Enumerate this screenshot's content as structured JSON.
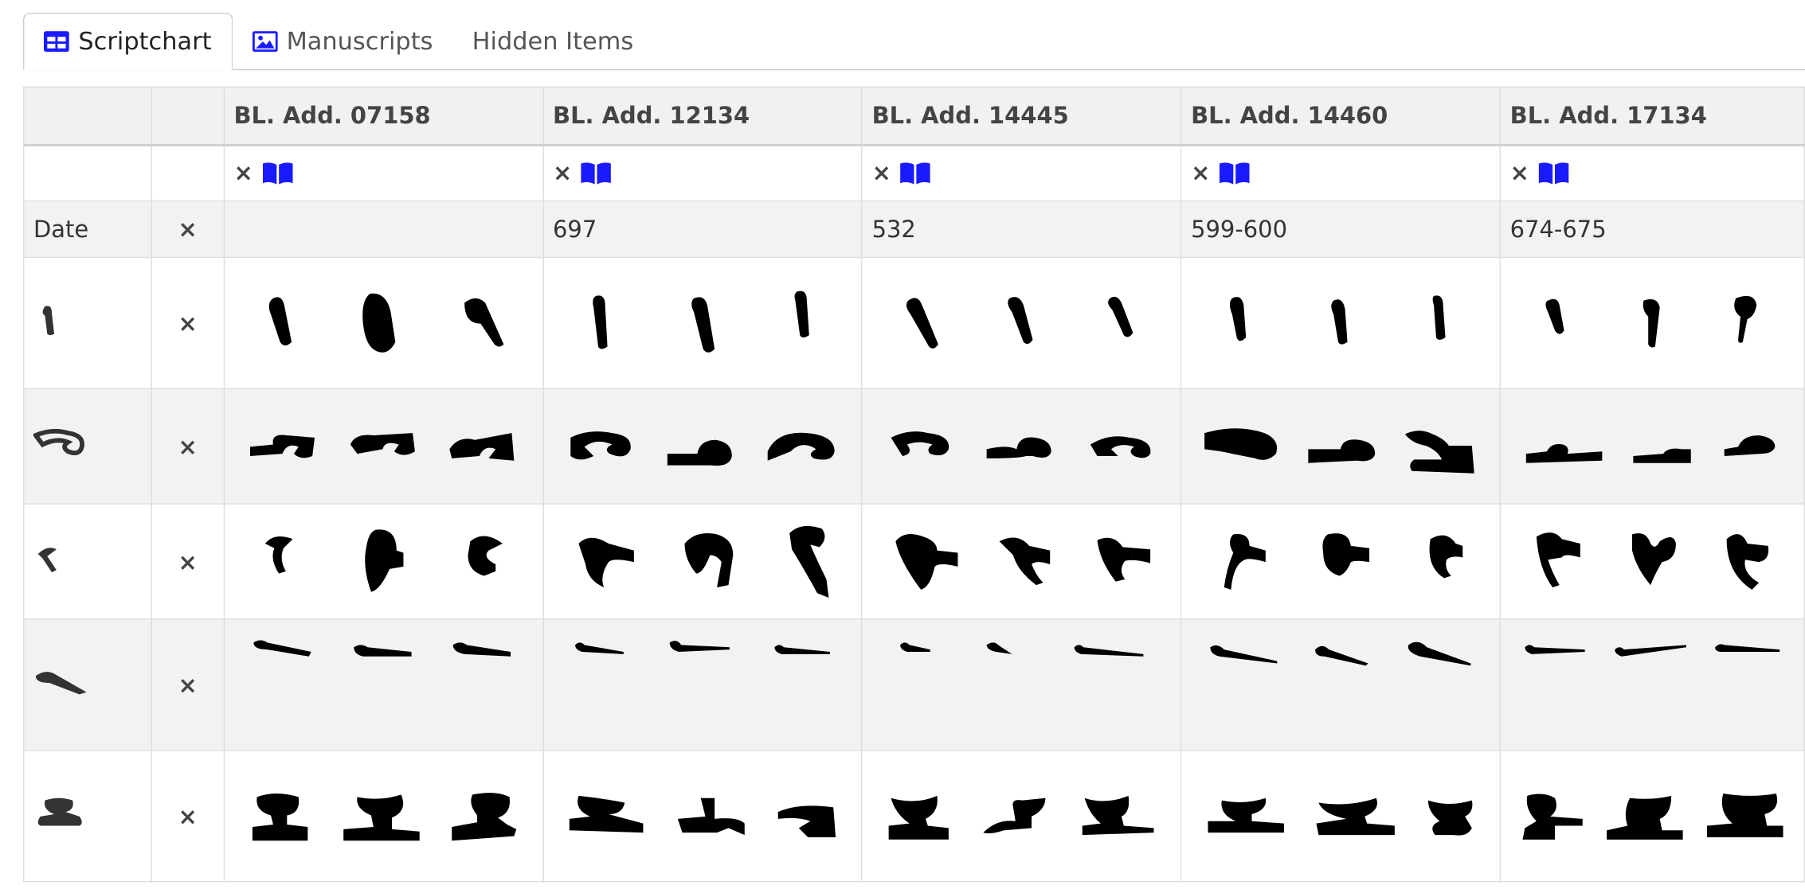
{
  "tabs": [
    {
      "label": "Scriptchart",
      "icon": "table-icon",
      "active": true
    },
    {
      "label": "Manuscripts",
      "icon": "image-icon",
      "active": false
    },
    {
      "label": "Hidden Items",
      "icon": "",
      "active": false
    }
  ],
  "manuscripts": [
    {
      "name": "BL. Add. 07158",
      "date": ""
    },
    {
      "name": "BL. Add. 12134",
      "date": "697"
    },
    {
      "name": "BL. Add. 14445",
      "date": "532"
    },
    {
      "name": "BL. Add. 14460",
      "date": "599-600"
    },
    {
      "name": "BL. Add. 17134",
      "date": "674-675"
    }
  ],
  "rows": {
    "date_label": "Date",
    "remove_glyph": "×",
    "letters": [
      {
        "name": "alaph",
        "icon": "alaph-letter-icon"
      },
      {
        "name": "beth",
        "icon": "beth-letter-icon"
      },
      {
        "name": "gamal",
        "icon": "gamal-letter-icon"
      },
      {
        "name": "dalath",
        "icon": "dalath-letter-icon"
      },
      {
        "name": "he",
        "icon": "he-letter-icon"
      }
    ]
  },
  "colors": {
    "accent": "#1a1aff",
    "ink": "#000000",
    "row_grey": "#f2f2f2"
  }
}
